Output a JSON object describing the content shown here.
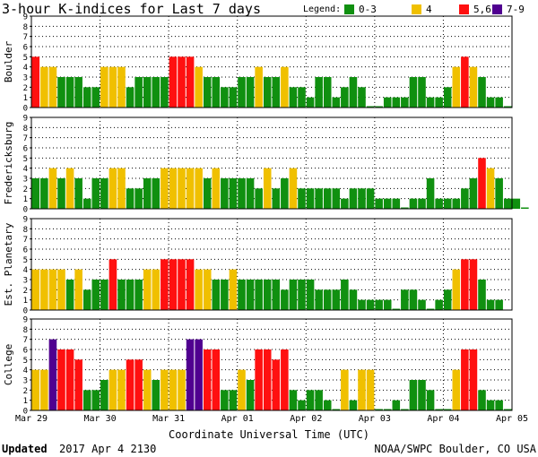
{
  "title": "3-hour K-indices for Last 7 days",
  "legend": {
    "label": "Legend:",
    "items": [
      {
        "text": "0-3",
        "color": "#109010"
      },
      {
        "text": "4",
        "color": "#f0c000"
      },
      {
        "text": "5,6",
        "color": "#ff1010"
      },
      {
        "text": "7-9",
        "color": "#500090"
      }
    ]
  },
  "footer": {
    "updated_label": "Updated",
    "updated_value": "2017 Apr  4 2130",
    "source": "NOAA/SWPC Boulder, CO USA"
  },
  "chart_data": {
    "type": "bar",
    "title": "3-hour K-indices for Last 7 days",
    "xlabel": "Coordinate Universal Time (UTC)",
    "x_ticks": [
      "Mar 29",
      "Mar 30",
      "Mar 31",
      "Apr 01",
      "Apr 02",
      "Apr 03",
      "Apr 04",
      "Apr 05"
    ],
    "ylim": [
      0,
      9
    ],
    "y_ticks": [
      0,
      1,
      2,
      3,
      4,
      5,
      6,
      7,
      8,
      9
    ],
    "bars_per_day": 8,
    "color_scale": {
      "0-3": "#109010",
      "4": "#f0c000",
      "5,6": "#ff1010",
      "7-9": "#500090"
    },
    "panels": [
      {
        "name": "Boulder",
        "values": [
          5,
          4,
          4,
          3,
          3,
          3,
          2,
          2,
          4,
          4,
          4,
          2,
          3,
          3,
          3,
          3,
          5,
          5,
          5,
          4,
          3,
          3,
          2,
          2,
          3,
          3,
          4,
          3,
          3,
          4,
          2,
          2,
          1,
          3,
          3,
          1,
          2,
          3,
          2,
          0,
          0,
          1,
          1,
          1,
          3,
          3,
          1,
          1,
          2,
          4,
          5,
          4,
          3,
          1,
          1,
          0
        ]
      },
      {
        "name": "Fredericksburg",
        "values": [
          3,
          3,
          4,
          3,
          4,
          3,
          1,
          3,
          3,
          4,
          4,
          2,
          2,
          3,
          3,
          4,
          4,
          4,
          4,
          4,
          3,
          4,
          3,
          3,
          3,
          3,
          2,
          4,
          2,
          3,
          4,
          2,
          2,
          2,
          2,
          2,
          1,
          2,
          2,
          2,
          1,
          1,
          1,
          0,
          1,
          1,
          3,
          1,
          1,
          1,
          2,
          3,
          5,
          4,
          3,
          1,
          1,
          0
        ]
      },
      {
        "name": "Est. Planetary",
        "values": [
          4,
          4,
          4,
          4,
          3,
          4,
          2,
          3,
          3,
          5,
          3,
          3,
          3,
          4,
          4,
          5,
          5,
          5,
          5,
          4,
          4,
          3,
          3,
          4,
          3,
          3,
          3,
          3,
          3,
          2,
          3,
          3,
          3,
          2,
          2,
          2,
          3,
          2,
          1,
          1,
          1,
          1,
          0,
          2,
          2,
          1,
          0,
          1,
          2,
          4,
          5,
          5,
          3,
          1,
          1
        ]
      },
      {
        "name": "College",
        "values": [
          4,
          4,
          7,
          6,
          6,
          5,
          2,
          2,
          3,
          4,
          4,
          5,
          5,
          4,
          3,
          4,
          4,
          4,
          7,
          7,
          6,
          6,
          2,
          2,
          4,
          3,
          6,
          6,
          5,
          6,
          2,
          1,
          2,
          2,
          1,
          0,
          4,
          1,
          4,
          4,
          0,
          0,
          1,
          0,
          3,
          3,
          2,
          0,
          0,
          4,
          6,
          6,
          2,
          1,
          1,
          0
        ]
      }
    ]
  }
}
